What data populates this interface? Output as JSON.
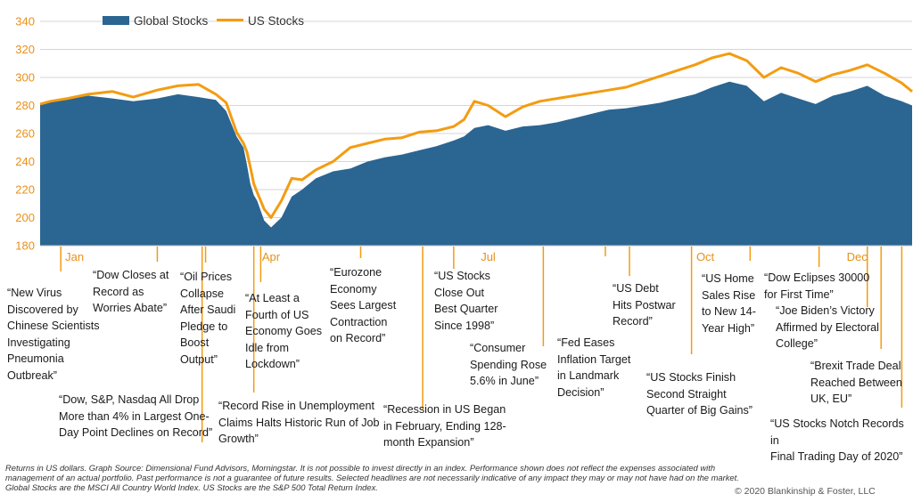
{
  "chart_data": {
    "type": "area",
    "ylim": [
      180,
      340
    ],
    "yticks": [
      180,
      200,
      220,
      240,
      260,
      280,
      300,
      320,
      340
    ],
    "x_axis_labels": [
      "Jan",
      "Apr",
      "Jul",
      "Oct",
      "Dec"
    ],
    "grid": true,
    "legend_position": "top",
    "series": [
      {
        "name": "Global Stocks",
        "style": "area",
        "color": "#2b6592",
        "x": [
          0,
          3,
          8,
          14,
          21,
          27,
          34,
          40,
          46,
          51,
          54,
          57,
          59,
          60,
          61,
          62,
          63,
          65,
          67,
          70,
          73,
          76,
          80,
          85,
          90,
          95,
          100,
          105,
          110,
          115,
          120,
          123,
          126,
          130,
          135,
          140,
          145,
          150,
          155,
          160,
          165,
          170,
          175,
          180,
          185,
          190,
          195,
          200,
          205,
          210,
          215,
          220,
          225,
          230,
          235,
          240,
          245,
          250,
          253
        ],
        "values": [
          281,
          283,
          285,
          287,
          285,
          283,
          285,
          288,
          286,
          284,
          276,
          258,
          250,
          238,
          224,
          216,
          212,
          198,
          193,
          200,
          215,
          220,
          228,
          233,
          235,
          240,
          243,
          245,
          248,
          251,
          255,
          258,
          264,
          266,
          262,
          265,
          266,
          268,
          271,
          274,
          277,
          278,
          280,
          282,
          285,
          288,
          293,
          297,
          294,
          283,
          289,
          285,
          281,
          287,
          290,
          294,
          287,
          283,
          280
        ]
      },
      {
        "name": "US Stocks",
        "style": "line",
        "color": "#f39c12",
        "x": [
          0,
          3,
          8,
          14,
          21,
          27,
          34,
          40,
          46,
          51,
          54,
          57,
          59,
          60,
          61,
          62,
          63,
          65,
          67,
          70,
          73,
          76,
          80,
          85,
          90,
          95,
          100,
          105,
          110,
          115,
          120,
          123,
          126,
          130,
          135,
          140,
          145,
          150,
          155,
          160,
          165,
          170,
          175,
          180,
          185,
          190,
          195,
          200,
          205,
          210,
          215,
          220,
          225,
          230,
          235,
          240,
          245,
          250,
          253
        ],
        "values": [
          281,
          283,
          285,
          288,
          290,
          286,
          291,
          294,
          295,
          288,
          282,
          261,
          253,
          247,
          236,
          224,
          218,
          206,
          200,
          212,
          228,
          227,
          234,
          240,
          250,
          253,
          256,
          257,
          261,
          262,
          265,
          270,
          283,
          280,
          272,
          279,
          283,
          285,
          287,
          289,
          291,
          293,
          297,
          301,
          305,
          309,
          314,
          317,
          312,
          300,
          307,
          303,
          297,
          302,
          305,
          309,
          303,
          296,
          290
        ]
      }
    ],
    "headlines": [
      {
        "text": "“New Virus\nDiscovered by\nChinese Scientists\nInvestigating\nPneumonia\nOutbreak”",
        "event_x": 6
      },
      {
        "text": "“Dow, S&P, Nasdaq All Drop\nMore than 4% in Largest One-\nDay Point Declines on Record”",
        "event_x": 47
      },
      {
        "text": "“Dow Closes at\nRecord as\nWorries Abate”",
        "event_x": 34
      },
      {
        "text": "“Oil Prices\nCollapse\nAfter Saudi\nPledge to\nBoost\nOutput”",
        "event_x": 48
      },
      {
        "text": "“At Least a\nFourth of US\nEconomy Goes\nIdle from\nLockdown”",
        "event_x": 64
      },
      {
        "text": "“Record Rise in Unemployment\nClaims Halts Historic Run of Job\nGrowth”",
        "event_x": 62
      },
      {
        "text": "“Eurozone\nEconomy\nSees Largest\nContraction\non Record”",
        "event_x": 93
      },
      {
        "text": "“US Stocks\nClose Out\nBest Quarter\nSince 1998”",
        "event_x": 120
      },
      {
        "text": "“Recession in US Began\nin February, Ending 128-\nmonth Expansion”",
        "event_x": 111
      },
      {
        "text": "“Consumer\nSpending Rose\n5.6% in June”",
        "event_x": 146
      },
      {
        "text": "“Fed Eases\nInflation Target\nin Landmark\nDecision”",
        "event_x": 164
      },
      {
        "text": "“US Debt\nHits Postwar\nRecord”",
        "event_x": 171
      },
      {
        "text": "“US Stocks Finish\nSecond Straight\nQuarter of Big Gains”",
        "event_x": 189
      },
      {
        "text": "“US Home\nSales Rise\nto New 14-\nYear High”",
        "event_x": 206
      },
      {
        "text": "“Dow Eclipses 30000\nfor First Time”",
        "event_x": 226
      },
      {
        "text": "“Joe Biden’s Victory\nAffirmed by Electoral\nCollege”",
        "event_x": 240
      },
      {
        "text": "“Brexit Trade Deal\nReached Between\nUK, EU”",
        "event_x": 244
      },
      {
        "text": "“US Stocks Notch Records in\nFinal Trading Day of 2020”",
        "event_x": 250
      }
    ]
  },
  "footnote": "Returns in US dollars. Graph Source: Dimensional Fund Advisors, Morningstar. It is not possible to invest directly in an index. Performance shown does not reflect the expenses associated with management of an actual portfolio. Past performance is not a guarantee of future results. Selected headlines are not necessarily indicative of any impact they may or may not have had on the market. Global Stocks are the MSCI All Country World Index. US Stocks are the S&P 500 Total Return Index.",
  "copyright": "© 2020 Blankinship & Foster, LLC"
}
